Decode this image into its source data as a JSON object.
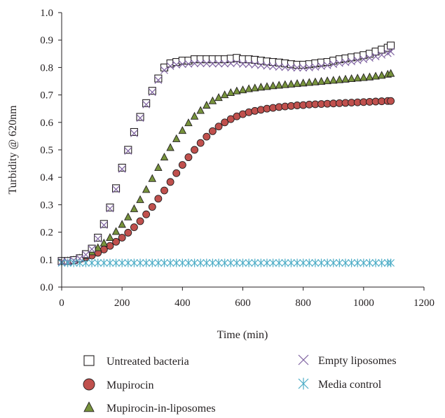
{
  "chart_data": {
    "type": "scatter",
    "xlabel": "Time (min)",
    "ylabel": "Turbidity @ 620nm",
    "xlim": [
      0,
      1200
    ],
    "ylim": [
      0,
      1.0
    ],
    "xticks": [
      "0",
      "200",
      "400",
      "600",
      "800",
      "1000",
      "1200"
    ],
    "yticks": [
      "0.0",
      "0.1",
      "0.2",
      "0.3",
      "0.4",
      "0.5",
      "0.6",
      "0.7",
      "0.8",
      "0.9",
      "1.0"
    ],
    "grid": false,
    "legend_position": "bottom",
    "series": [
      {
        "name": "Untreated bacteria",
        "marker": "open-square",
        "color": "#231f20",
        "x": [
          0,
          20,
          40,
          60,
          80,
          100,
          120,
          140,
          160,
          180,
          200,
          220,
          240,
          260,
          280,
          300,
          320,
          340,
          360,
          380,
          400,
          420,
          440,
          460,
          480,
          500,
          520,
          540,
          560,
          580,
          600,
          620,
          640,
          660,
          680,
          700,
          720,
          740,
          760,
          780,
          800,
          820,
          840,
          860,
          880,
          900,
          920,
          940,
          960,
          980,
          1000,
          1020,
          1040,
          1060,
          1080,
          1090
        ],
        "y": [
          0.095,
          0.095,
          0.098,
          0.105,
          0.12,
          0.14,
          0.18,
          0.23,
          0.29,
          0.36,
          0.435,
          0.5,
          0.565,
          0.62,
          0.67,
          0.715,
          0.76,
          0.8,
          0.815,
          0.82,
          0.825,
          0.825,
          0.83,
          0.83,
          0.83,
          0.83,
          0.83,
          0.83,
          0.832,
          0.835,
          0.83,
          0.83,
          0.828,
          0.825,
          0.822,
          0.82,
          0.818,
          0.815,
          0.812,
          0.81,
          0.81,
          0.812,
          0.815,
          0.818,
          0.82,
          0.825,
          0.83,
          0.833,
          0.837,
          0.84,
          0.845,
          0.85,
          0.858,
          0.865,
          0.872,
          0.88
        ]
      },
      {
        "name": "Mupirocin",
        "marker": "filled-circle",
        "color": "#c0504d",
        "x": [
          0,
          20,
          40,
          60,
          80,
          100,
          120,
          140,
          160,
          180,
          200,
          220,
          240,
          260,
          280,
          300,
          320,
          340,
          360,
          380,
          400,
          420,
          440,
          460,
          480,
          500,
          520,
          540,
          560,
          580,
          600,
          620,
          640,
          660,
          680,
          700,
          720,
          740,
          760,
          780,
          800,
          820,
          840,
          860,
          880,
          900,
          920,
          940,
          960,
          980,
          1000,
          1020,
          1040,
          1060,
          1080,
          1090
        ],
        "y": [
          0.095,
          0.095,
          0.098,
          0.102,
          0.108,
          0.115,
          0.125,
          0.137,
          0.15,
          0.165,
          0.18,
          0.198,
          0.218,
          0.24,
          0.265,
          0.292,
          0.322,
          0.352,
          0.383,
          0.415,
          0.445,
          0.473,
          0.5,
          0.525,
          0.548,
          0.568,
          0.585,
          0.6,
          0.612,
          0.622,
          0.63,
          0.637,
          0.642,
          0.646,
          0.65,
          0.653,
          0.656,
          0.658,
          0.66,
          0.662,
          0.663,
          0.665,
          0.666,
          0.667,
          0.668,
          0.669,
          0.67,
          0.671,
          0.672,
          0.673,
          0.674,
          0.675,
          0.676,
          0.677,
          0.678,
          0.678
        ]
      },
      {
        "name": "Mupirocin-in-liposomes",
        "marker": "filled-triangle",
        "color": "#77933c",
        "x": [
          0,
          20,
          40,
          60,
          80,
          100,
          120,
          140,
          160,
          180,
          200,
          220,
          240,
          260,
          280,
          300,
          320,
          340,
          360,
          380,
          400,
          420,
          440,
          460,
          480,
          500,
          520,
          540,
          560,
          580,
          600,
          620,
          640,
          660,
          680,
          700,
          720,
          740,
          760,
          780,
          800,
          820,
          840,
          860,
          880,
          900,
          920,
          940,
          960,
          980,
          1000,
          1020,
          1040,
          1060,
          1080,
          1090
        ],
        "y": [
          0.095,
          0.095,
          0.098,
          0.105,
          0.115,
          0.128,
          0.143,
          0.16,
          0.18,
          0.202,
          0.228,
          0.255,
          0.285,
          0.318,
          0.355,
          0.395,
          0.435,
          0.473,
          0.508,
          0.54,
          0.57,
          0.598,
          0.622,
          0.643,
          0.662,
          0.678,
          0.69,
          0.7,
          0.708,
          0.714,
          0.718,
          0.722,
          0.725,
          0.728,
          0.73,
          0.733,
          0.735,
          0.737,
          0.739,
          0.741,
          0.743,
          0.745,
          0.747,
          0.749,
          0.751,
          0.753,
          0.755,
          0.757,
          0.759,
          0.761,
          0.763,
          0.765,
          0.768,
          0.771,
          0.775,
          0.778
        ]
      },
      {
        "name": "Empty liposomes",
        "marker": "x-cross",
        "color": "#8064a2",
        "x": [
          0,
          20,
          40,
          60,
          80,
          100,
          120,
          140,
          160,
          180,
          200,
          220,
          240,
          260,
          280,
          300,
          320,
          340,
          360,
          380,
          400,
          420,
          440,
          460,
          480,
          500,
          520,
          540,
          560,
          580,
          600,
          620,
          640,
          660,
          680,
          700,
          720,
          740,
          760,
          780,
          800,
          820,
          840,
          860,
          880,
          900,
          920,
          940,
          960,
          980,
          1000,
          1020,
          1040,
          1060,
          1080,
          1090
        ],
        "y": [
          0.092,
          0.093,
          0.097,
          0.104,
          0.118,
          0.138,
          0.176,
          0.226,
          0.286,
          0.356,
          0.43,
          0.496,
          0.56,
          0.616,
          0.665,
          0.71,
          0.754,
          0.79,
          0.805,
          0.81,
          0.812,
          0.813,
          0.815,
          0.815,
          0.815,
          0.814,
          0.814,
          0.814,
          0.815,
          0.816,
          0.813,
          0.812,
          0.81,
          0.808,
          0.806,
          0.804,
          0.802,
          0.801,
          0.8,
          0.799,
          0.799,
          0.8,
          0.802,
          0.805,
          0.808,
          0.812,
          0.816,
          0.819,
          0.822,
          0.826,
          0.83,
          0.835,
          0.84,
          0.846,
          0.852,
          0.858
        ]
      },
      {
        "name": "Media control",
        "marker": "asterisk",
        "color": "#4bacc6",
        "x": [
          0,
          20,
          40,
          60,
          80,
          100,
          120,
          140,
          160,
          180,
          200,
          220,
          240,
          260,
          280,
          300,
          320,
          340,
          360,
          380,
          400,
          420,
          440,
          460,
          480,
          500,
          520,
          540,
          560,
          580,
          600,
          620,
          640,
          660,
          680,
          700,
          720,
          740,
          760,
          780,
          800,
          820,
          840,
          860,
          880,
          900,
          920,
          940,
          960,
          980,
          1000,
          1020,
          1040,
          1060,
          1080,
          1090
        ],
        "y": [
          0.088,
          0.088,
          0.088,
          0.088,
          0.088,
          0.088,
          0.088,
          0.088,
          0.088,
          0.088,
          0.088,
          0.088,
          0.088,
          0.088,
          0.088,
          0.088,
          0.088,
          0.088,
          0.088,
          0.088,
          0.088,
          0.088,
          0.088,
          0.088,
          0.088,
          0.088,
          0.088,
          0.088,
          0.088,
          0.088,
          0.088,
          0.088,
          0.088,
          0.088,
          0.088,
          0.088,
          0.088,
          0.088,
          0.088,
          0.088,
          0.088,
          0.088,
          0.088,
          0.088,
          0.088,
          0.088,
          0.088,
          0.088,
          0.088,
          0.088,
          0.088,
          0.088,
          0.088,
          0.088,
          0.088,
          0.088
        ]
      }
    ]
  }
}
